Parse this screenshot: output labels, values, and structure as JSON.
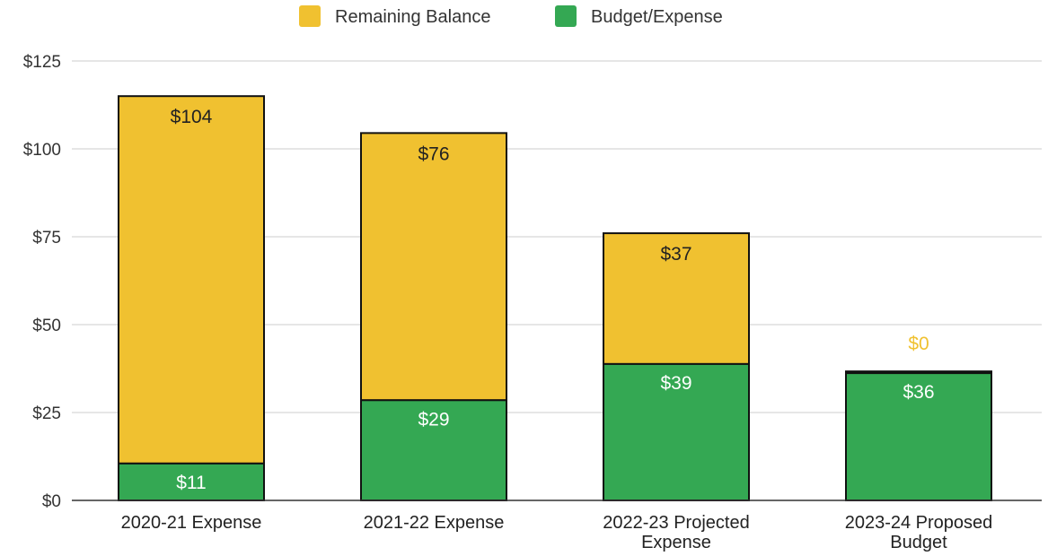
{
  "chart_data": {
    "type": "bar",
    "stacked": true,
    "categories": [
      [
        "2020-21 Expense"
      ],
      [
        "2021-22 Expense"
      ],
      [
        "2022-23 Projected",
        "Expense"
      ],
      [
        "2023-24 Proposed",
        "Budget"
      ]
    ],
    "series": [
      {
        "name": "Budget/Expense",
        "color": "#34a853",
        "values": [
          10.5,
          28.5,
          38.8,
          36.2
        ],
        "labels": [
          "$11",
          "$29",
          "$39",
          "$36"
        ],
        "label_color": "#ffffff"
      },
      {
        "name": "Remaining Balance",
        "color": "#f0c130",
        "values": [
          104.5,
          76,
          37.2,
          0.5
        ],
        "labels": [
          "$104",
          "$76",
          "$37",
          "$0"
        ],
        "label_color": "#222222",
        "outside_label_color": "#f0c130"
      }
    ],
    "legend_order": [
      "Remaining Balance",
      "Budget/Expense"
    ],
    "legend_position": "top",
    "y_ticks": [
      "$0",
      "$25",
      "$50",
      "$75",
      "$100",
      "$125"
    ],
    "y_tick_values": [
      0,
      25,
      50,
      75,
      100,
      125
    ],
    "ylim": [
      0,
      125
    ],
    "grid": true,
    "title": "",
    "xlabel": "",
    "ylabel": ""
  }
}
